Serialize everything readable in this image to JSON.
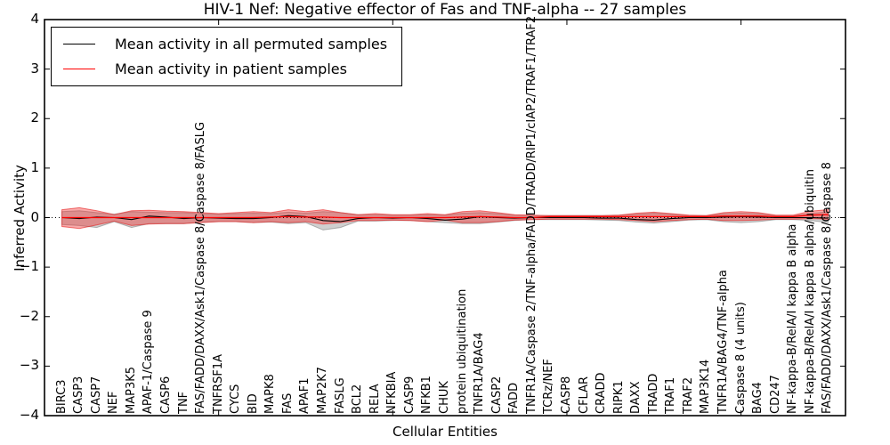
{
  "figure": {
    "background": "#ffffff",
    "frame_color": "#000000"
  },
  "chart_data": {
    "type": "line",
    "title": "HIV-1 Nef: Negative effector of Fas and TNF-alpha -- 27 samples",
    "xlabel": "Cellular Entities",
    "ylabel": "Inferred Activity",
    "xlim": [
      0,
      46
    ],
    "ylim": [
      -4,
      4
    ],
    "xticks": [
      0,
      10,
      20,
      30,
      40
    ],
    "yticks": [
      4,
      3,
      2,
      1,
      0,
      -1,
      -2,
      -3,
      -4
    ],
    "ytick_labels": [
      "4",
      "3",
      "2",
      "1",
      "0",
      "−1",
      "−2",
      "−3",
      "−4"
    ],
    "grid": false,
    "zero_line": true,
    "legend_position": "upper left",
    "categories": [
      "BIRC3",
      "CASP3",
      "CASP7",
      "NEF",
      "MAP3K5",
      "APAF-1/Caspase 9",
      "CASP6",
      "TNF",
      "FAS/FADD/DAXX/Ask1/Caspase 8/Caspase 8/FASLG",
      "TNFRSF1A",
      "CYCS",
      "BID",
      "MAPK8",
      "FAS",
      "APAF1",
      "MAP2K7",
      "FASLG",
      "BCL2",
      "RELA",
      "NFKBIA",
      "CASP9",
      "NFKB1",
      "CHUK",
      "protein ubiquitination",
      "TNFR1A/BAG4",
      "CASP2",
      "FADD",
      "TNFR1A/Caspase 2/TNF-alpha/FADD/TRADD/RIP1/cIAP2/TRAF1/TRAF2",
      "TCRz/NEF",
      "CASP8",
      "CFLAR",
      "CRADD",
      "RIPK1",
      "DAXX",
      "TRADD",
      "TRAF1",
      "TRAF2",
      "MAP3K14",
      "TNFR1A/BAG4/TNF-alpha",
      "Caspase 8 (4 units)",
      "BAG4",
      "CD247",
      "NF-kappa-B/RelA/I kappa B alpha",
      "NF-kappa-B/RelA/I kappa B alpha/ubiquitin",
      "FAS/FADD/DAXX/Ask1/Caspase 8/Caspase 8"
    ],
    "series": [
      {
        "name": "Mean activity in all permuted samples",
        "color": "#000000",
        "values": [
          0.0,
          -0.02,
          0.01,
          0.0,
          -0.04,
          0.03,
          0.01,
          -0.02,
          0.0,
          -0.01,
          -0.02,
          -0.02,
          0.0,
          0.04,
          0.02,
          -0.06,
          -0.08,
          -0.02,
          0.0,
          -0.01,
          0.0,
          -0.02,
          -0.05,
          -0.03,
          0.02,
          0.0,
          -0.01,
          0.0,
          0.0,
          0.0,
          0.0,
          -0.01,
          -0.01,
          -0.04,
          -0.05,
          -0.02,
          0.0,
          0.0,
          0.01,
          0.02,
          0.01,
          0.0,
          0.0,
          0.0,
          -0.01
        ]
      },
      {
        "name": "Mean activity in patient samples",
        "color": "#ff0000",
        "values": [
          0.0,
          0.0,
          0.0,
          0.0,
          0.0,
          0.0,
          0.0,
          0.0,
          0.0,
          0.0,
          0.0,
          0.0,
          0.01,
          0.02,
          0.01,
          0.01,
          0.0,
          0.0,
          0.0,
          0.0,
          0.0,
          0.0,
          0.0,
          0.01,
          0.02,
          0.01,
          0.0,
          0.0,
          0.02,
          0.02,
          0.02,
          0.02,
          0.02,
          0.02,
          0.02,
          0.02,
          0.02,
          0.02,
          0.03,
          0.03,
          0.03,
          0.02,
          0.02,
          0.05,
          0.06
        ]
      }
    ],
    "bands": [
      {
        "name": "permuted samples spread",
        "color": "rgba(130,130,130,0.38)",
        "edge_color": "rgba(100,100,100,0.45)",
        "upper": [
          0.12,
          0.14,
          0.1,
          0.07,
          0.12,
          0.11,
          0.1,
          0.1,
          0.08,
          0.07,
          0.08,
          0.09,
          0.08,
          0.11,
          0.09,
          0.12,
          0.1,
          0.06,
          0.06,
          0.05,
          0.05,
          0.06,
          0.05,
          0.09,
          0.1,
          0.08,
          0.05,
          0.04,
          0.04,
          0.04,
          0.04,
          0.04,
          0.05,
          0.07,
          0.09,
          0.07,
          0.04,
          0.04,
          0.08,
          0.09,
          0.08,
          0.04,
          0.04,
          0.08,
          0.12
        ],
        "lower": [
          -0.14,
          -0.16,
          -0.2,
          -0.08,
          -0.2,
          -0.12,
          -0.12,
          -0.12,
          -0.09,
          -0.08,
          -0.08,
          -0.1,
          -0.09,
          -0.12,
          -0.1,
          -0.25,
          -0.2,
          -0.07,
          -0.07,
          -0.06,
          -0.06,
          -0.08,
          -0.1,
          -0.12,
          -0.12,
          -0.09,
          -0.06,
          -0.04,
          -0.04,
          -0.04,
          -0.04,
          -0.05,
          -0.06,
          -0.09,
          -0.11,
          -0.08,
          -0.05,
          -0.04,
          -0.08,
          -0.1,
          -0.08,
          -0.04,
          -0.04,
          -0.06,
          -0.1
        ]
      },
      {
        "name": "patient samples spread",
        "color": "rgba(240,50,50,0.42)",
        "edge_color": "rgba(230,30,30,0.6)",
        "upper": [
          0.16,
          0.2,
          0.14,
          0.06,
          0.14,
          0.15,
          0.13,
          0.12,
          0.1,
          0.08,
          0.1,
          0.12,
          0.1,
          0.16,
          0.12,
          0.16,
          0.1,
          0.06,
          0.08,
          0.06,
          0.06,
          0.08,
          0.06,
          0.12,
          0.14,
          0.1,
          0.06,
          0.05,
          0.04,
          0.04,
          0.04,
          0.04,
          0.05,
          0.09,
          0.11,
          0.08,
          0.05,
          0.04,
          0.1,
          0.12,
          0.1,
          0.05,
          0.05,
          0.13,
          0.16
        ],
        "lower": [
          -0.18,
          -0.22,
          -0.15,
          -0.07,
          -0.16,
          -0.13,
          -0.12,
          -0.12,
          -0.1,
          -0.08,
          -0.08,
          -0.1,
          -0.08,
          -0.1,
          -0.08,
          -0.13,
          -0.1,
          -0.06,
          -0.06,
          -0.05,
          -0.06,
          -0.08,
          -0.05,
          -0.1,
          -0.1,
          -0.08,
          -0.05,
          -0.04,
          -0.03,
          -0.03,
          -0.03,
          -0.03,
          -0.04,
          -0.06,
          -0.08,
          -0.06,
          -0.04,
          -0.03,
          -0.06,
          -0.06,
          -0.05,
          -0.03,
          -0.03,
          -0.02,
          -0.03
        ]
      }
    ]
  }
}
